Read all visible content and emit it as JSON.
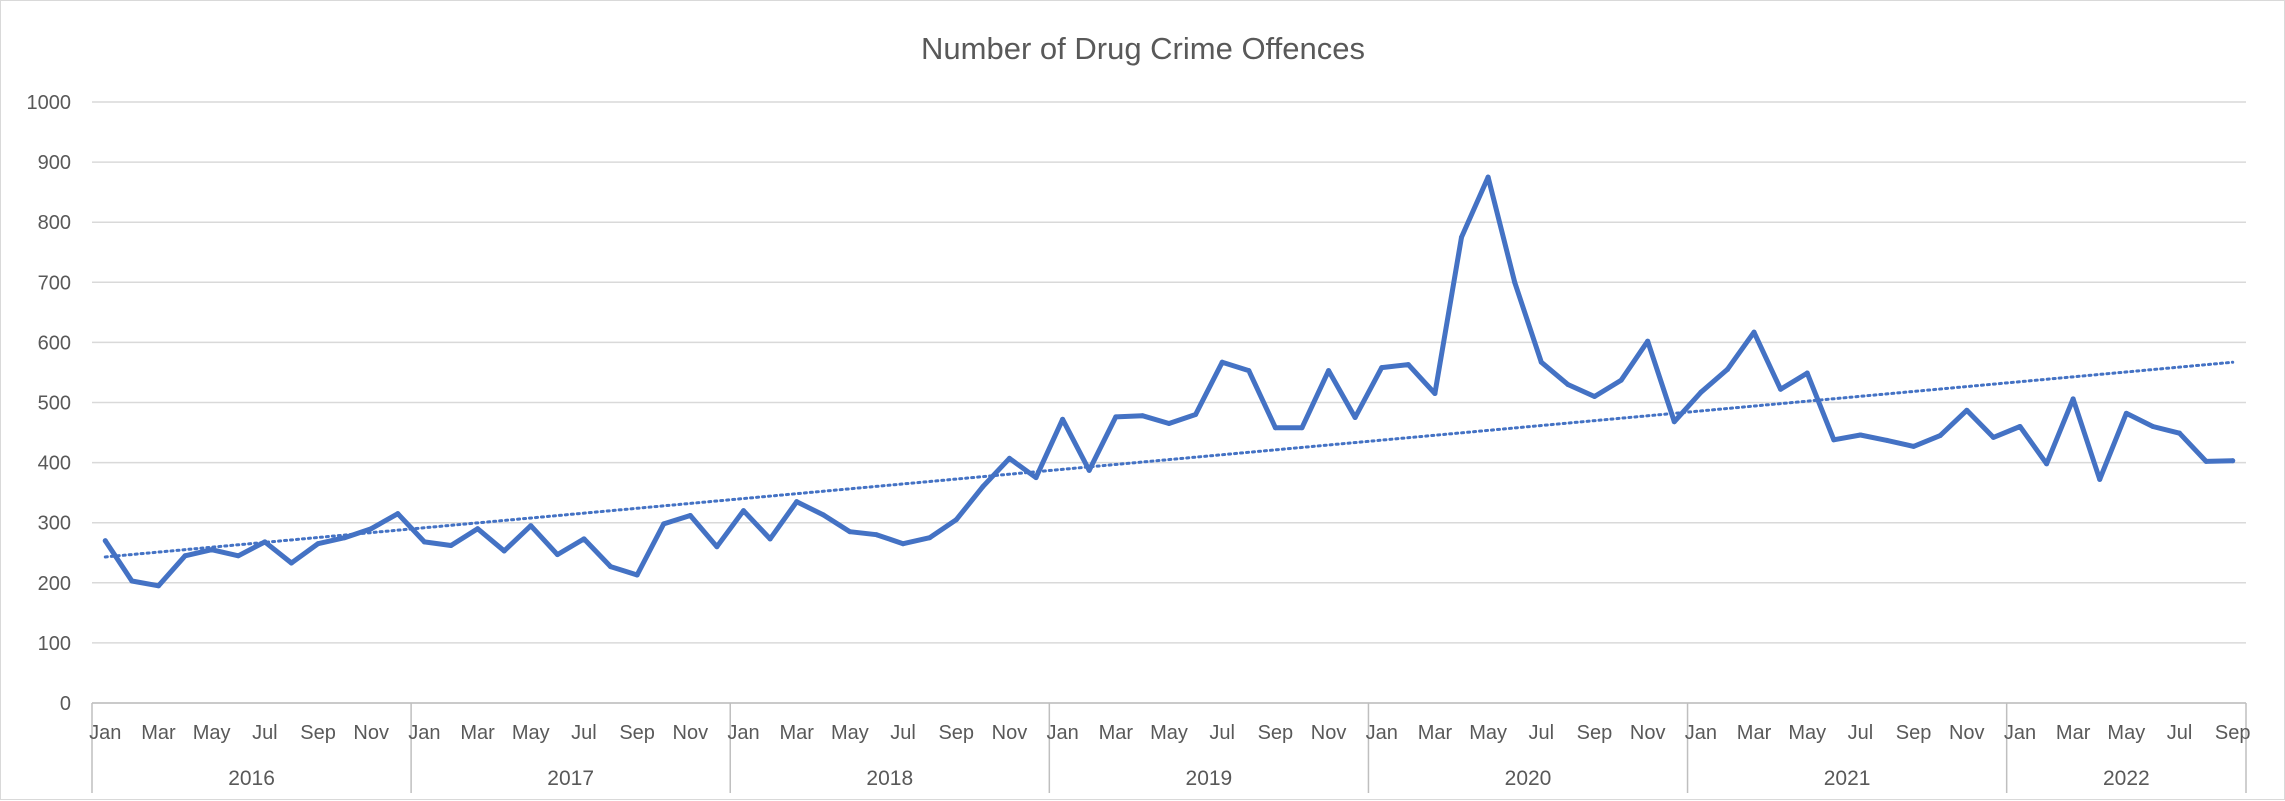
{
  "chart_data": {
    "type": "line",
    "title": "Number of Drug Crime Offences",
    "xlabel": "",
    "ylabel": "",
    "ylim": [
      0,
      1000
    ],
    "yticks": [
      0,
      100,
      200,
      300,
      400,
      500,
      600,
      700,
      800,
      900,
      1000
    ],
    "grid": true,
    "legend": "none",
    "month_labels": [
      "Jan",
      "Mar",
      "May",
      "Jul",
      "Sep",
      "Nov"
    ],
    "years": [
      {
        "year": "2016",
        "months": 12
      },
      {
        "year": "2017",
        "months": 12
      },
      {
        "year": "2018",
        "months": 12
      },
      {
        "year": "2019",
        "months": 12
      },
      {
        "year": "2020",
        "months": 12
      },
      {
        "year": "2021",
        "months": 12
      },
      {
        "year": "2022",
        "months": 9
      }
    ],
    "series": [
      {
        "values": [
          270,
          203,
          195,
          245,
          255,
          245,
          268,
          233,
          265,
          275,
          290,
          315,
          268,
          262,
          290,
          253,
          295,
          247,
          273,
          227,
          213,
          298,
          312,
          260,
          320,
          273,
          335,
          313,
          285,
          280,
          265,
          275,
          305,
          360,
          407,
          375,
          472,
          387,
          476,
          478,
          465,
          480,
          567,
          553,
          458,
          458,
          553,
          475,
          558,
          563,
          515,
          775,
          875,
          700,
          567,
          530,
          510,
          537,
          602,
          468,
          517,
          555,
          617,
          522,
          549,
          438,
          446,
          437,
          427,
          445,
          487,
          442,
          460,
          398,
          506,
          372,
          482,
          460,
          449,
          402,
          403
        ],
        "color": "#4472c4"
      }
    ],
    "trendline": {
      "type": "linear",
      "style": "dotted",
      "color": "#4472c4",
      "start_value": 243,
      "end_value": 567
    }
  }
}
